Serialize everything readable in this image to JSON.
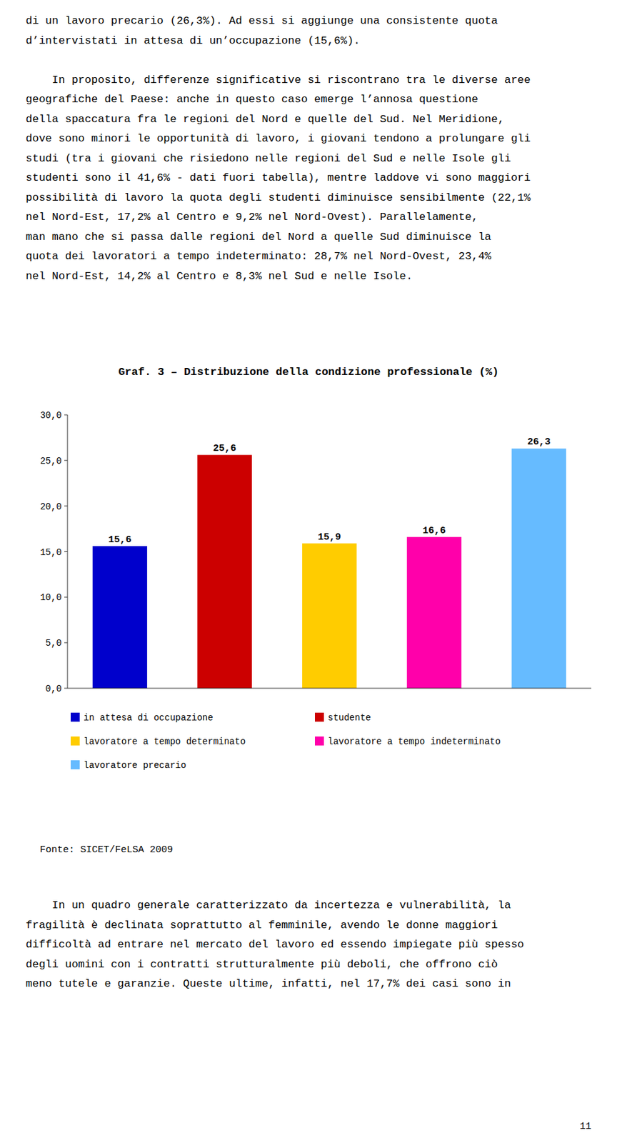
{
  "chart_data": {
    "type": "bar",
    "title": "Graf. 3 – Distribuzione della condizione professionale (%)",
    "categories": [
      "in attesa di occupazione",
      "studente",
      "lavoratore a tempo determinato",
      "lavoratore a tempo indeterminato",
      "lavoratore precario"
    ],
    "values": [
      15.6,
      25.6,
      15.9,
      16.6,
      26.3
    ],
    "value_labels": [
      "15,6",
      "25,6",
      "15,9",
      "16,6",
      "26,3"
    ],
    "colors": [
      "#0000CC",
      "#CC0000",
      "#FFCC00",
      "#FF00AA",
      "#66BBFF"
    ],
    "ylim": [
      0,
      30
    ],
    "yticks": [
      {
        "value": 0,
        "label": "0,0"
      },
      {
        "value": 5,
        "label": "5,0"
      },
      {
        "value": 10,
        "label": "10,0"
      },
      {
        "value": 15,
        "label": "15,0"
      },
      {
        "value": 20,
        "label": "20,0"
      },
      {
        "value": 25,
        "label": "25,0"
      },
      {
        "value": 30,
        "label": "30,0"
      }
    ],
    "grid": false,
    "data_labels": true,
    "tick_labels": "y",
    "legend": "bottom",
    "annotations": [
      "Fonte: SICET/FeLSA 2009"
    ]
  },
  "page_text": {
    "before": [
      [
        "di un lavoro precario (26,3%). Ad essi si aggiunge una consistente quota",
        "d’intervistati in attesa di un’occupazione (15,6%)."
      ],
      [
        "    In proposito, differenze significative si riscontrano tra le diverse aree",
        "geografiche del Paese: anche in questo caso emerge l’annosa questione",
        "della spaccatura fra le regioni del Nord e quelle del Sud. Nel Meridione,",
        "dove sono minori le opportunità di lavoro, i giovani tendono a prolungare gli",
        "studi (tra i giovani che risiedono nelle regioni del Sud e nelle Isole gli",
        "studenti sono il 41,6% - dati fuori tabella), mentre laddove vi sono maggiori",
        "possibilità di lavoro la quota degli studenti diminuisce sensibilmente (22,1%",
        "nel Nord-Est, 17,2% al Centro e 9,2% nel Nord-Ovest). Parallelamente,",
        "man mano che si passa dalle regioni del Nord a quelle Sud diminuisce la",
        "quota dei lavoratori a tempo indeterminato: 28,7% nel Nord-Ovest, 23,4%",
        "nel Nord-Est, 14,2% al Centro e 8,3% nel Sud e nelle Isole."
      ]
    ],
    "after": [
      [
        "    In un quadro generale caratterizzato da incertezza e vulnerabilità, la",
        "fragilità è declinata soprattutto al femminile, avendo le donne maggiori",
        "difficoltà ad entrare nel mercato del lavoro ed essendo impiegate più spesso",
        "degli uomini con i contratti strutturalmente più deboli, che offrono ciò",
        "meno tutele e garanzie. Queste ultime, infatti, nel 17,7% dei casi sono in"
      ]
    ],
    "page_number": "11"
  }
}
